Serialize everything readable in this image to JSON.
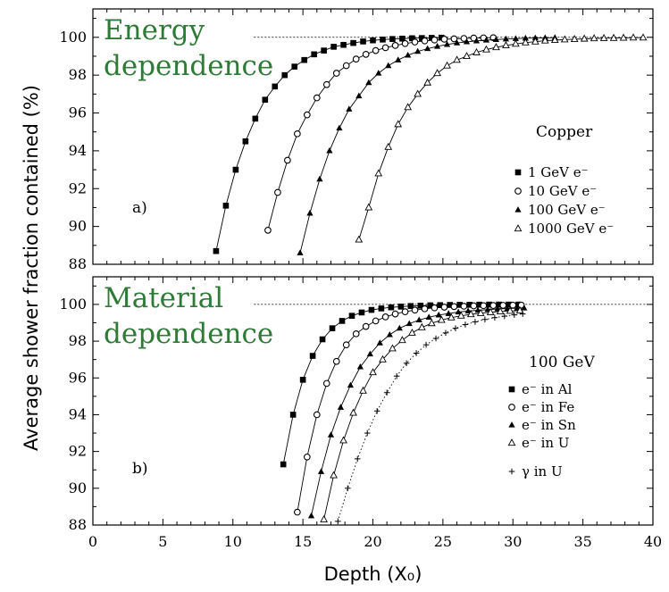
{
  "chart_data": [
    {
      "type": "line",
      "panel_letter": "a)",
      "title_lines": [
        "Energy",
        "dependence"
      ],
      "material": "Copper",
      "xlim": [
        0,
        40
      ],
      "ylim": [
        88,
        101.5
      ],
      "yticks": [
        88,
        90,
        92,
        94,
        96,
        98,
        100
      ],
      "reference_line": 100,
      "legend_placement": "right",
      "series": [
        {
          "name": "1 GeV e⁻",
          "marker": "filled-square",
          "x": [
            8.8,
            9.5,
            10.2,
            10.9,
            11.6,
            12.3,
            13.0,
            13.7,
            14.4,
            15.1,
            15.8,
            16.5,
            17.2,
            17.9,
            18.6,
            19.3,
            20.0,
            20.7,
            21.4,
            22.1,
            22.8,
            23.5,
            24.2,
            24.9
          ],
          "y": [
            88.7,
            91.1,
            93.0,
            94.5,
            95.7,
            96.7,
            97.4,
            98.0,
            98.45,
            98.8,
            99.1,
            99.3,
            99.5,
            99.6,
            99.7,
            99.78,
            99.84,
            99.88,
            99.91,
            99.93,
            99.95,
            99.96,
            99.97,
            99.98
          ]
        },
        {
          "name": "10 GeV e⁻",
          "marker": "open-circle",
          "x": [
            12.5,
            13.2,
            13.9,
            14.6,
            15.3,
            16.0,
            16.7,
            17.4,
            18.1,
            18.8,
            19.5,
            20.2,
            20.9,
            21.6,
            22.3,
            23.0,
            23.7,
            24.4,
            25.1,
            25.8,
            26.5,
            27.2,
            27.9,
            28.6
          ],
          "y": [
            89.8,
            91.8,
            93.5,
            94.9,
            95.9,
            96.8,
            97.5,
            98.1,
            98.5,
            98.85,
            99.1,
            99.3,
            99.45,
            99.57,
            99.67,
            99.75,
            99.81,
            99.86,
            99.9,
            99.92,
            99.94,
            99.96,
            99.97,
            99.98
          ]
        },
        {
          "name": "100 GeV e⁻",
          "marker": "filled-triangle",
          "x": [
            14.8,
            15.5,
            16.2,
            16.9,
            17.6,
            18.3,
            19.0,
            19.7,
            20.4,
            21.1,
            21.8,
            22.5,
            23.2,
            23.9,
            24.6,
            25.3,
            26.0,
            26.7,
            27.4,
            28.1,
            28.8,
            29.5,
            30.2,
            30.9,
            31.6,
            32.3,
            33.0
          ],
          "y": [
            88.6,
            90.7,
            92.5,
            94.0,
            95.2,
            96.2,
            96.9,
            97.6,
            98.1,
            98.5,
            98.8,
            99.05,
            99.25,
            99.4,
            99.52,
            99.62,
            99.7,
            99.76,
            99.81,
            99.85,
            99.88,
            99.91,
            99.93,
            99.95,
            99.96,
            99.97,
            99.98
          ]
        },
        {
          "name": "1000 GeV e⁻",
          "marker": "open-triangle",
          "x": [
            19.0,
            19.7,
            20.4,
            21.1,
            21.8,
            22.5,
            23.2,
            23.9,
            24.6,
            25.3,
            26.0,
            26.7,
            27.4,
            28.1,
            28.8,
            29.5,
            30.2,
            30.9,
            31.6,
            32.3,
            33.0,
            33.7,
            34.4,
            35.1,
            35.8,
            36.5,
            37.2,
            37.9,
            38.6,
            39.3
          ],
          "y": [
            89.3,
            91.0,
            92.8,
            94.2,
            95.4,
            96.3,
            97.0,
            97.6,
            98.1,
            98.5,
            98.8,
            99.0,
            99.2,
            99.35,
            99.47,
            99.57,
            99.65,
            99.72,
            99.77,
            99.82,
            99.85,
            99.88,
            99.9,
            99.92,
            99.94,
            99.95,
            99.96,
            99.97,
            99.98,
            99.98
          ]
        }
      ]
    },
    {
      "type": "line",
      "panel_letter": "b)",
      "title_lines": [
        "Material",
        "dependence"
      ],
      "material": "100 GeV",
      "xlim": [
        0,
        40
      ],
      "ylim": [
        88,
        101.5
      ],
      "yticks": [
        88,
        90,
        92,
        94,
        96,
        98,
        100
      ],
      "xticks": [
        0,
        5,
        10,
        15,
        20,
        25,
        30,
        35,
        40
      ],
      "xlabel": "Depth (X₀)",
      "ylabel": "Average shower fraction contained (%)",
      "reference_line": 100,
      "legend_placement": "right",
      "series": [
        {
          "name": "e⁻ in Al",
          "marker": "filled-square",
          "x": [
            13.6,
            14.3,
            15.0,
            15.7,
            16.4,
            17.1,
            17.8,
            18.5,
            19.2,
            19.9,
            20.6,
            21.3,
            22.0,
            22.7,
            23.4,
            24.1,
            24.8,
            25.5,
            26.2,
            26.9,
            27.6,
            28.3,
            29.0,
            29.7,
            30.4
          ],
          "y": [
            91.3,
            94.0,
            95.9,
            97.2,
            98.1,
            98.7,
            99.1,
            99.38,
            99.56,
            99.7,
            99.78,
            99.84,
            99.88,
            99.91,
            99.93,
            99.95,
            99.96,
            99.97,
            99.975,
            99.98,
            99.985,
            99.99,
            99.99,
            99.99,
            99.99
          ]
        },
        {
          "name": "e⁻ in Fe",
          "marker": "open-circle",
          "x": [
            14.6,
            15.3,
            16.0,
            16.7,
            17.4,
            18.1,
            18.8,
            19.5,
            20.2,
            20.9,
            21.6,
            22.3,
            23.0,
            23.7,
            24.4,
            25.1,
            25.8,
            26.5,
            27.2,
            27.9,
            28.6,
            29.3,
            30.0,
            30.6
          ],
          "y": [
            88.7,
            91.7,
            94.0,
            95.7,
            96.9,
            97.8,
            98.4,
            98.8,
            99.1,
            99.32,
            99.48,
            99.6,
            99.69,
            99.76,
            99.81,
            99.85,
            99.88,
            99.9,
            99.92,
            99.93,
            99.94,
            99.95,
            99.96,
            99.96
          ]
        },
        {
          "name": "e⁻ in Sn",
          "marker": "filled-triangle",
          "x": [
            15.6,
            16.3,
            17.0,
            17.7,
            18.4,
            19.1,
            19.8,
            20.5,
            21.2,
            21.9,
            22.6,
            23.3,
            24.0,
            24.7,
            25.4,
            26.1,
            26.8,
            27.5,
            28.2,
            28.9,
            29.6,
            30.3,
            30.8
          ],
          "y": [
            88.5,
            90.9,
            92.9,
            94.4,
            95.6,
            96.6,
            97.3,
            97.9,
            98.35,
            98.7,
            98.95,
            99.15,
            99.3,
            99.42,
            99.5,
            99.58,
            99.64,
            99.68,
            99.72,
            99.75,
            99.77,
            99.79,
            99.8
          ]
        },
        {
          "name": "e⁻ in U",
          "marker": "open-triangle",
          "x": [
            16.5,
            17.2,
            17.9,
            18.6,
            19.3,
            20.0,
            20.7,
            21.4,
            22.1,
            22.8,
            23.5,
            24.2,
            24.9,
            25.6,
            26.3,
            27.0,
            27.7,
            28.4,
            29.1,
            29.8,
            30.5
          ],
          "y": [
            88.3,
            90.7,
            92.6,
            94.1,
            95.3,
            96.3,
            97.0,
            97.6,
            98.05,
            98.45,
            98.75,
            98.97,
            99.15,
            99.28,
            99.38,
            99.46,
            99.52,
            99.57,
            99.61,
            99.64,
            99.66
          ]
        },
        {
          "name": "γ in U",
          "marker": "plus",
          "line": "dotted",
          "x": [
            17.5,
            18.2,
            18.9,
            19.6,
            20.3,
            21.0,
            21.7,
            22.4,
            23.1,
            23.8,
            24.5,
            25.2,
            25.9,
            26.6,
            27.3,
            28.0,
            28.7,
            29.4,
            30.1,
            30.7
          ],
          "y": [
            88.2,
            90.0,
            91.6,
            93.0,
            94.2,
            95.2,
            96.1,
            96.8,
            97.35,
            97.8,
            98.15,
            98.45,
            98.7,
            98.9,
            99.05,
            99.18,
            99.28,
            99.36,
            99.43,
            99.48
          ]
        }
      ]
    }
  ]
}
